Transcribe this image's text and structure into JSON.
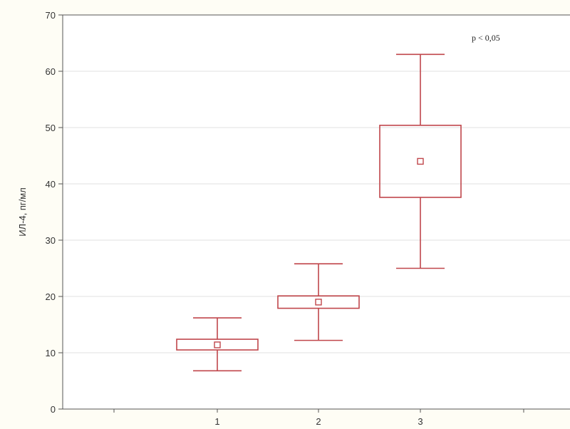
{
  "chart_data": {
    "type": "box",
    "title": "",
    "xlabel": "",
    "ylabel": "ИЛ-4, пг/мл",
    "categories": [
      "1",
      "2",
      "3"
    ],
    "ylim": [
      0,
      70
    ],
    "yticks": [
      0,
      10,
      20,
      30,
      40,
      50,
      60,
      70
    ],
    "grid": true,
    "boxes": [
      {
        "category": "1",
        "whisker_low": 6.8,
        "box_low": 10.5,
        "center": 11.4,
        "box_high": 12.4,
        "whisker_high": 16.2
      },
      {
        "category": "2",
        "whisker_low": 12.2,
        "box_low": 17.9,
        "center": 19.0,
        "box_high": 20.1,
        "whisker_high": 25.8
      },
      {
        "category": "3",
        "whisker_low": 25.0,
        "box_low": 37.6,
        "center": 44.0,
        "box_high": 50.4,
        "whisker_high": 63.0
      }
    ],
    "annotation": "p < 0,05",
    "colors": {
      "box": "#c0464b",
      "grid": "#e2e2e2",
      "axis": "#555555",
      "background": "#fefdf5",
      "plot_background": "#ffffff"
    }
  }
}
